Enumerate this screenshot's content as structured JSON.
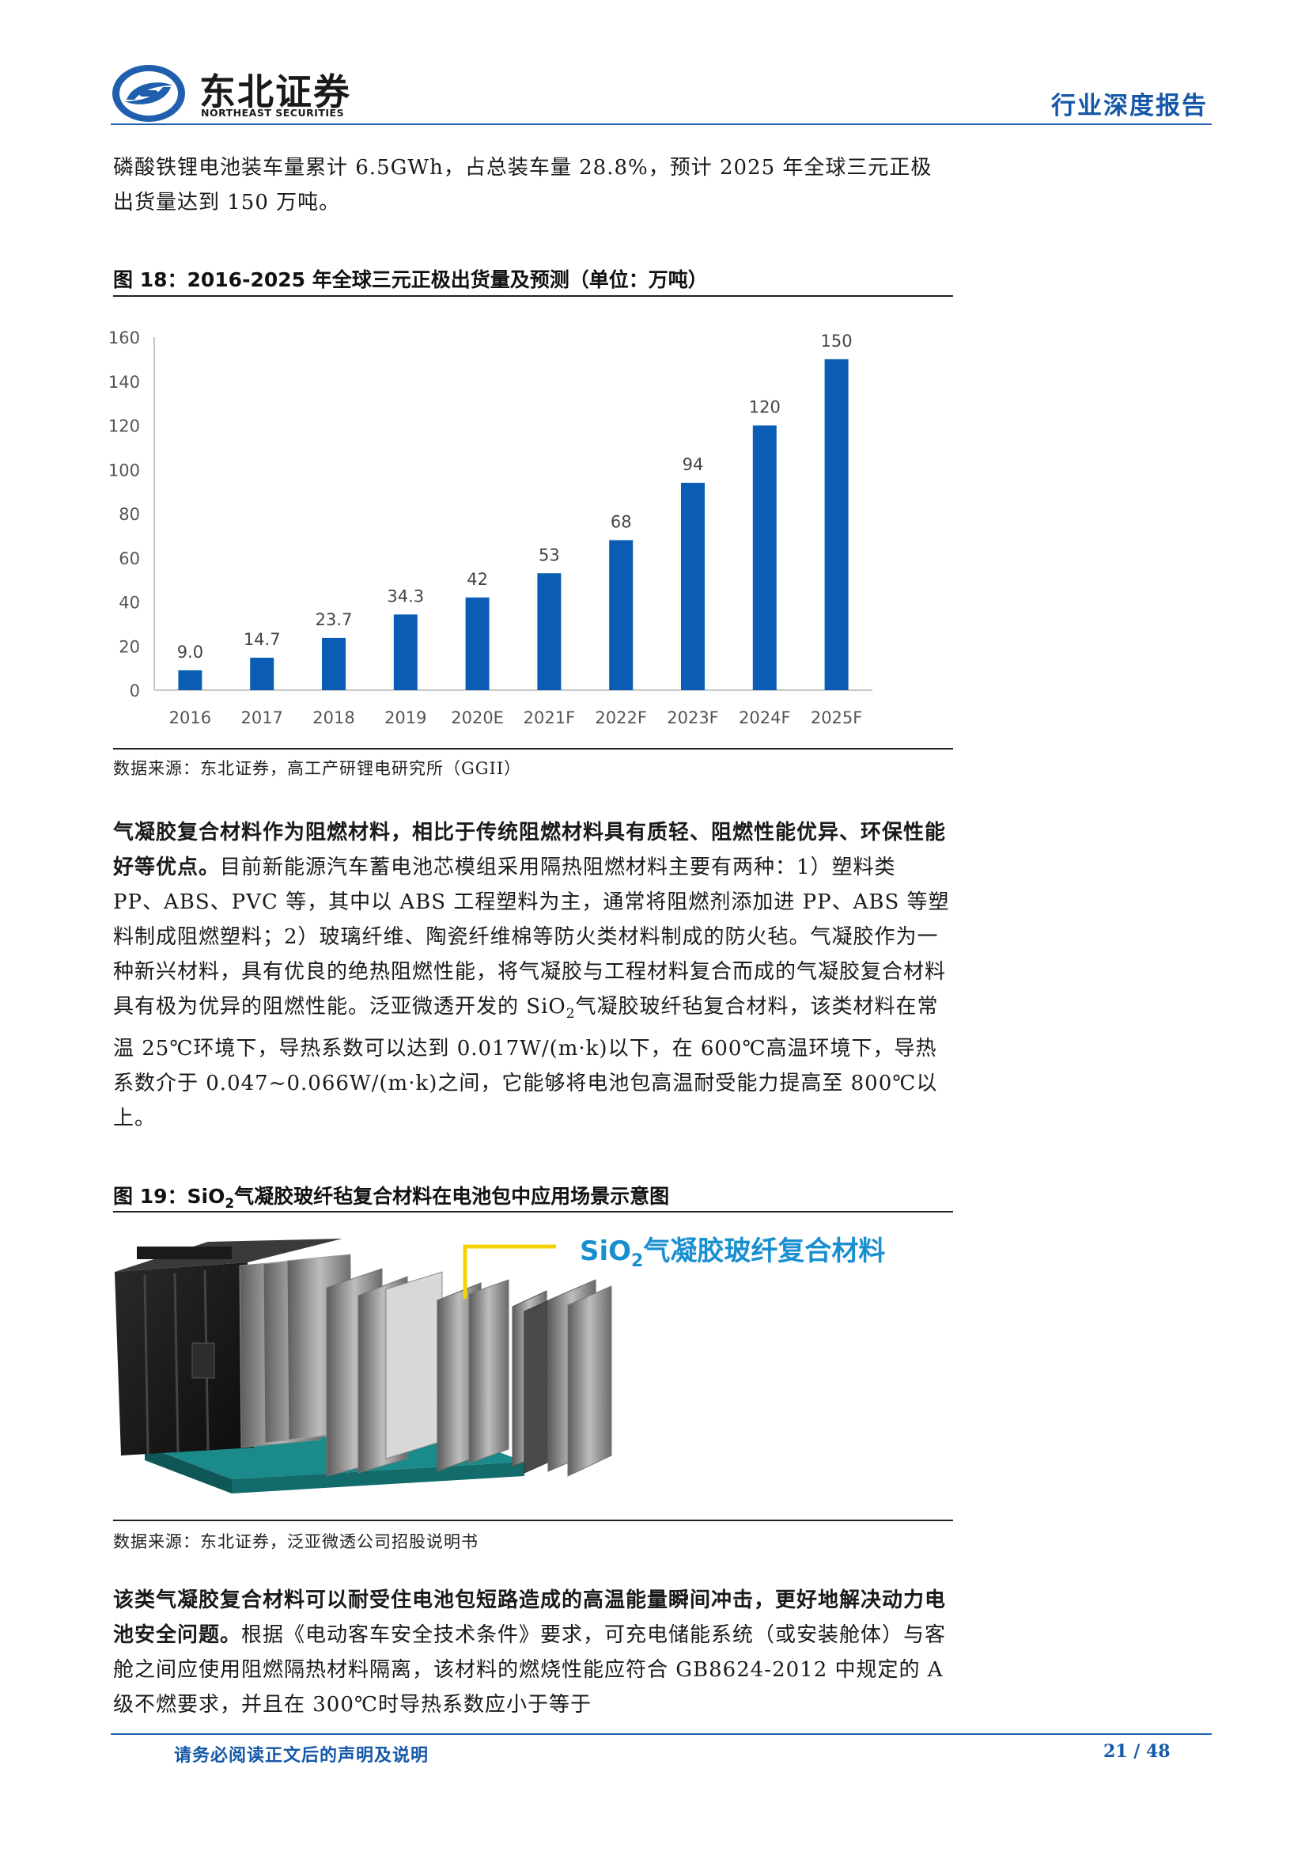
{
  "header": {
    "logo_cn": "东北证券",
    "logo_en": "NORTHEAST SECURITIES",
    "report_type": "行业深度报告"
  },
  "intro": {
    "text": "磷酸铁锂电池装车量累计 6.5GWh，占总装车量 28.8%，预计 2025 年全球三元正极出货量达到 150 万吨。"
  },
  "figure18": {
    "title": "图 18：2016-2025 年全球三元正极出货量及预测（单位：万吨）",
    "source": "数据来源：东北证券，高工产研锂电研究所（GGII）"
  },
  "chart_data": {
    "type": "bar",
    "categories": [
      "2016",
      "2017",
      "2018",
      "2019",
      "2020E",
      "2021F",
      "2022F",
      "2023F",
      "2024F",
      "2025F"
    ],
    "values": [
      9.0,
      14.7,
      23.7,
      34.3,
      42,
      53,
      68,
      94,
      120,
      150
    ],
    "value_labels": [
      "9.0",
      "14.7",
      "23.7",
      "34.3",
      "42",
      "53",
      "68",
      "94",
      "120",
      "150"
    ],
    "ylim": [
      0,
      160
    ],
    "yticks": [
      0,
      20,
      40,
      60,
      80,
      100,
      120,
      140,
      160
    ],
    "grid": false,
    "bar_color": "#0b5cb5"
  },
  "para2": {
    "bold": "气凝胶复合材料作为阻燃材料，相比于传统阻燃材料具有质轻、阻燃性能优异、环保性能好等优点。",
    "text_a": "目前新能源汽车蓄电池芯模组采用隔热阻燃材料主要有两种：1）塑料类 PP、ABS、PVC 等，其中以 ABS 工程塑料为主，通常将阻燃剂添加进 PP、ABS 等塑料制成阻燃塑料；2）玻璃纤维、陶瓷纤维棉等防火类材料制成的防火毡。气凝胶作为一种新兴材料，具有优良的绝热阻燃性能，将气凝胶与工程材料复合而成的气凝胶复合材料具有极为优异的阻燃性能。泛亚微透开发的 SiO",
    "sub": "2",
    "text_b": "气凝胶玻纤毡复合材料，该类材料在常温 25℃环境下，导热系数可以达到 0.017W/(m·k)以下，在 600℃高温环境下，导热系数介于 0.047~0.066W/(m·k)之间，它能够将电池包高温耐受能力提高至 800℃以上。"
  },
  "figure19": {
    "title_a": "图 19：SiO",
    "title_sub": "2",
    "title_b": "气凝胶玻纤毡复合材料在电池包中应用场景示意图",
    "label_a": "SiO",
    "label_sub": "2",
    "label_b": "气凝胶玻纤复合材料",
    "source": "数据来源：东北证券，泛亚微透公司招股说明书"
  },
  "para3": {
    "bold": "该类气凝胶复合材料可以耐受住电池包短路造成的高温能量瞬间冲击，更好地解决动力电池安全问题。",
    "text": "根据《电动客车安全技术条件》要求，可充电储能系统（或安装舱体）与客舱之间应使用阻燃隔热材料隔离，该材料的燃烧性能应符合 GB8624-2012 中规定的 A 级不燃要求，并且在 300℃时导热系数应小于等于"
  },
  "footer": {
    "note": "请务必阅读正文后的声明及说明",
    "page": "21 / 48"
  }
}
